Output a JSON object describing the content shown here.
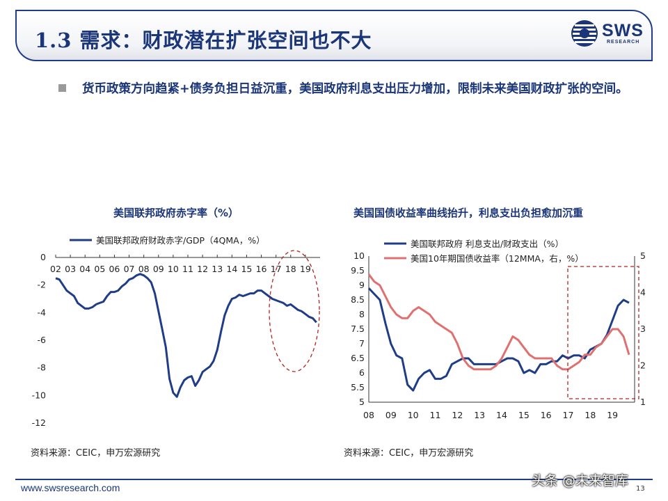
{
  "header": {
    "title": "1.3 需求：财政潜在扩张空间也不大",
    "logo_text": "SWS",
    "logo_subtext": "RESEARCH",
    "accent_color": "#1a3578"
  },
  "bullet": {
    "text": "货币政策方向趋紧+债务负担日益沉重，美国政府利息支出压力增加，限制未来美国财政扩张的空间。"
  },
  "chart_data": [
    {
      "type": "line",
      "title": "美国联邦政府赤字率（%）",
      "x_ticks": [
        "02",
        "03",
        "04",
        "05",
        "06",
        "07",
        "08",
        "09",
        "10",
        "11",
        "12",
        "13",
        "14",
        "15",
        "16",
        "17",
        "18",
        "19"
      ],
      "ylim": [
        -12,
        0
      ],
      "y_ticks": [
        0,
        -2,
        -4,
        -6,
        -8,
        -10,
        -12
      ],
      "legend_position": "top-left",
      "annotation": "dashed-ellipse",
      "series": [
        {
          "name": "美国联邦政府财政赤字/GDP（4QMA，%）",
          "color": "#1f3c88",
          "points": [
            [
              2002.0,
              -1.5
            ],
            [
              2002.25,
              -1.6
            ],
            [
              2002.5,
              -2.0
            ],
            [
              2002.75,
              -2.4
            ],
            [
              2003.0,
              -2.6
            ],
            [
              2003.25,
              -2.8
            ],
            [
              2003.5,
              -3.3
            ],
            [
              2003.75,
              -3.5
            ],
            [
              2004.0,
              -3.7
            ],
            [
              2004.25,
              -3.7
            ],
            [
              2004.5,
              -3.6
            ],
            [
              2004.75,
              -3.4
            ],
            [
              2005.0,
              -3.3
            ],
            [
              2005.25,
              -3.2
            ],
            [
              2005.5,
              -2.8
            ],
            [
              2005.75,
              -2.5
            ],
            [
              2006.0,
              -2.5
            ],
            [
              2006.25,
              -2.4
            ],
            [
              2006.5,
              -2.1
            ],
            [
              2006.75,
              -1.9
            ],
            [
              2007.0,
              -1.6
            ],
            [
              2007.25,
              -1.5
            ],
            [
              2007.5,
              -1.3
            ],
            [
              2007.75,
              -1.2
            ],
            [
              2008.0,
              -1.3
            ],
            [
              2008.25,
              -1.5
            ],
            [
              2008.5,
              -1.8
            ],
            [
              2008.75,
              -2.6
            ],
            [
              2009.0,
              -3.9
            ],
            [
              2009.25,
              -5.2
            ],
            [
              2009.5,
              -6.5
            ],
            [
              2009.75,
              -8.8
            ],
            [
              2010.0,
              -9.8
            ],
            [
              2010.25,
              -10.1
            ],
            [
              2010.5,
              -9.4
            ],
            [
              2010.75,
              -8.9
            ],
            [
              2011.0,
              -8.7
            ],
            [
              2011.25,
              -8.6
            ],
            [
              2011.5,
              -9.3
            ],
            [
              2011.75,
              -8.9
            ],
            [
              2012.0,
              -8.3
            ],
            [
              2012.25,
              -8.1
            ],
            [
              2012.5,
              -7.9
            ],
            [
              2012.75,
              -7.5
            ],
            [
              2013.0,
              -6.7
            ],
            [
              2013.25,
              -5.4
            ],
            [
              2013.5,
              -4.2
            ],
            [
              2013.75,
              -3.5
            ],
            [
              2014.0,
              -3.0
            ],
            [
              2014.25,
              -2.9
            ],
            [
              2014.5,
              -2.7
            ],
            [
              2014.75,
              -2.8
            ],
            [
              2015.0,
              -2.7
            ],
            [
              2015.25,
              -2.6
            ],
            [
              2015.5,
              -2.6
            ],
            [
              2015.75,
              -2.4
            ],
            [
              2016.0,
              -2.4
            ],
            [
              2016.25,
              -2.6
            ],
            [
              2016.5,
              -2.8
            ],
            [
              2016.75,
              -3.0
            ],
            [
              2017.0,
              -3.1
            ],
            [
              2017.25,
              -3.2
            ],
            [
              2017.5,
              -3.3
            ],
            [
              2017.75,
              -3.5
            ],
            [
              2018.0,
              -3.4
            ],
            [
              2018.25,
              -3.6
            ],
            [
              2018.5,
              -3.8
            ],
            [
              2018.75,
              -3.9
            ],
            [
              2019.0,
              -4.1
            ],
            [
              2019.25,
              -4.3
            ],
            [
              2019.5,
              -4.4
            ],
            [
              2019.75,
              -4.7
            ]
          ]
        }
      ]
    },
    {
      "type": "line",
      "title": "美国国债收益率曲线抬升，利息支出负担愈加沉重",
      "x_ticks": [
        "08",
        "09",
        "10",
        "11",
        "12",
        "13",
        "14",
        "15",
        "16",
        "17",
        "18",
        "19"
      ],
      "ylim_left": [
        5,
        10
      ],
      "y_ticks_left": [
        10,
        9.5,
        9,
        8.5,
        8,
        7.5,
        7,
        6.5,
        6,
        5.5,
        5
      ],
      "ylim_right": [
        1,
        5
      ],
      "y_ticks_right": [
        5,
        4,
        3,
        2,
        1
      ],
      "legend_position": "top-left",
      "annotation": "dashed-rectangle",
      "series": [
        {
          "name": "美国联邦政府 利息支出/财政支出（%）",
          "axis": "left",
          "color": "#1f3c88",
          "points": [
            [
              2008.0,
              8.9
            ],
            [
              2008.25,
              8.7
            ],
            [
              2008.5,
              8.5
            ],
            [
              2008.75,
              7.7
            ],
            [
              2009.0,
              7.0
            ],
            [
              2009.25,
              6.6
            ],
            [
              2009.5,
              6.5
            ],
            [
              2009.75,
              5.6
            ],
            [
              2010.0,
              5.4
            ],
            [
              2010.25,
              5.8
            ],
            [
              2010.5,
              6.0
            ],
            [
              2010.75,
              6.1
            ],
            [
              2011.0,
              5.8
            ],
            [
              2011.25,
              5.8
            ],
            [
              2011.5,
              5.9
            ],
            [
              2011.75,
              6.3
            ],
            [
              2012.0,
              6.4
            ],
            [
              2012.25,
              6.5
            ],
            [
              2012.5,
              6.5
            ],
            [
              2012.75,
              6.3
            ],
            [
              2013.0,
              6.3
            ],
            [
              2013.25,
              6.3
            ],
            [
              2013.5,
              6.3
            ],
            [
              2013.75,
              6.3
            ],
            [
              2014.0,
              6.4
            ],
            [
              2014.25,
              6.5
            ],
            [
              2014.5,
              6.5
            ],
            [
              2014.75,
              6.4
            ],
            [
              2015.0,
              6.0
            ],
            [
              2015.25,
              6.1
            ],
            [
              2015.5,
              6.0
            ],
            [
              2015.75,
              6.3
            ],
            [
              2016.0,
              6.3
            ],
            [
              2016.25,
              6.4
            ],
            [
              2016.5,
              6.4
            ],
            [
              2016.75,
              6.6
            ],
            [
              2017.0,
              6.5
            ],
            [
              2017.25,
              6.6
            ],
            [
              2017.5,
              6.6
            ],
            [
              2017.75,
              6.5
            ],
            [
              2018.0,
              6.8
            ],
            [
              2018.25,
              6.9
            ],
            [
              2018.5,
              7.0
            ],
            [
              2018.75,
              7.3
            ],
            [
              2019.0,
              7.8
            ],
            [
              2019.25,
              8.3
            ],
            [
              2019.5,
              8.5
            ],
            [
              2019.75,
              8.4
            ]
          ]
        },
        {
          "name": "美国10年期国债收益率（12MMA，右，%）",
          "axis": "right",
          "color": "#e07070",
          "points": [
            [
              2008.0,
              4.5
            ],
            [
              2008.25,
              4.3
            ],
            [
              2008.5,
              4.2
            ],
            [
              2008.75,
              3.9
            ],
            [
              2009.0,
              3.6
            ],
            [
              2009.25,
              3.4
            ],
            [
              2009.5,
              3.3
            ],
            [
              2009.75,
              3.3
            ],
            [
              2010.0,
              3.5
            ],
            [
              2010.25,
              3.6
            ],
            [
              2010.5,
              3.5
            ],
            [
              2010.75,
              3.4
            ],
            [
              2011.0,
              3.2
            ],
            [
              2011.25,
              3.1
            ],
            [
              2011.5,
              3.0
            ],
            [
              2011.75,
              2.9
            ],
            [
              2012.0,
              2.6
            ],
            [
              2012.25,
              2.2
            ],
            [
              2012.5,
              2.0
            ],
            [
              2012.75,
              1.9
            ],
            [
              2013.0,
              1.9
            ],
            [
              2013.25,
              1.9
            ],
            [
              2013.5,
              1.9
            ],
            [
              2013.75,
              2.0
            ],
            [
              2014.0,
              2.2
            ],
            [
              2014.25,
              2.5
            ],
            [
              2014.5,
              2.8
            ],
            [
              2014.75,
              2.7
            ],
            [
              2015.0,
              2.5
            ],
            [
              2015.25,
              2.3
            ],
            [
              2015.5,
              2.2
            ],
            [
              2015.75,
              2.2
            ],
            [
              2016.0,
              2.2
            ],
            [
              2016.25,
              2.2
            ],
            [
              2016.5,
              2.0
            ],
            [
              2016.75,
              1.9
            ],
            [
              2017.0,
              1.9
            ],
            [
              2017.25,
              2.0
            ],
            [
              2017.5,
              2.1
            ],
            [
              2017.75,
              2.3
            ],
            [
              2018.0,
              2.3
            ],
            [
              2018.25,
              2.5
            ],
            [
              2018.5,
              2.6
            ],
            [
              2018.75,
              2.8
            ],
            [
              2019.0,
              3.0
            ],
            [
              2019.25,
              3.0
            ],
            [
              2019.5,
              2.8
            ],
            [
              2019.75,
              2.3
            ]
          ]
        }
      ]
    }
  ],
  "sources": {
    "left": "资料来源：CEIC，申万宏源研究",
    "right": "资料来源：CEIC，申万宏源研究"
  },
  "footer": {
    "website": "www.swsresearch.com",
    "page_number": "13",
    "watermark": "头条 @未来智库"
  }
}
